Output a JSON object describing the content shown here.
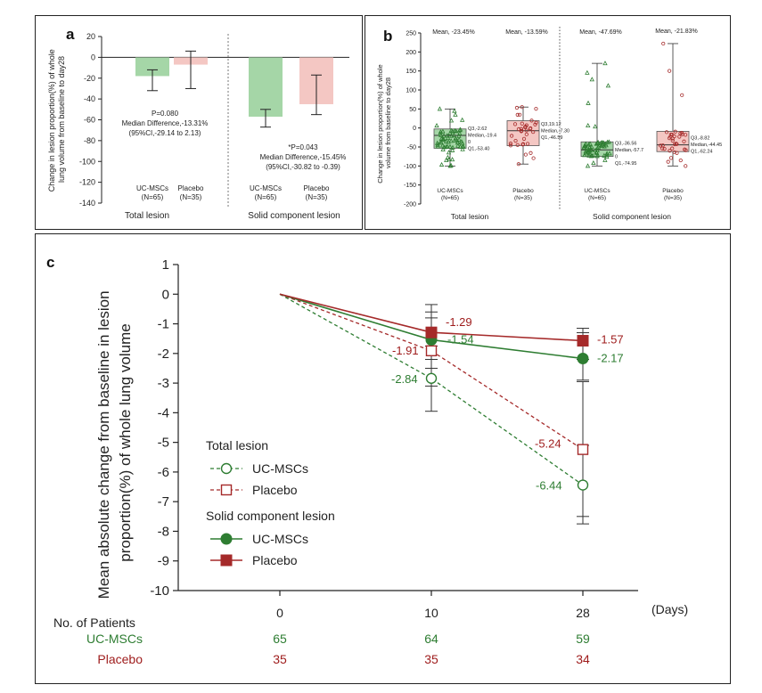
{
  "colors": {
    "green": "#2e7d32",
    "red": "#a52a2a",
    "green_fill": "#a5d6a7",
    "red_fill": "#f4c7c3",
    "text": "#222222",
    "green_text": "#2e7d32",
    "red_text": "#9e1b1b"
  },
  "chart_data": [
    {
      "id": "a",
      "panel_label": "a",
      "type": "bar",
      "ylabel": "Change in lesion proportion(%) of whole lung volume from baseline to day28",
      "ylabel_lines": [
        "Change in lesion proportion(%) of whole",
        "lung volume from baseline to day28"
      ],
      "ylim": [
        -140,
        20
      ],
      "yticks": [
        "20",
        "0",
        "-20",
        "-40",
        "-60",
        "-80",
        "-100",
        "-120",
        "-140"
      ],
      "groups": [
        {
          "label": "Total lesion",
          "bars": [
            {
              "name": "UC-MSCs",
              "n_label": "(N=65)",
              "value": -18,
              "err_low": -32,
              "err_high": -12,
              "color": "green"
            },
            {
              "name": "Placebo",
              "n_label": "(N=35)",
              "value": -7,
              "err_low": -30,
              "err_high": 6,
              "color": "red"
            }
          ],
          "annotation": [
            "P=0.080",
            "Median Difference,-13.31%",
            "(95%CI,-29.14 to 2.13)"
          ]
        },
        {
          "label": "Solid component lesion",
          "bars": [
            {
              "name": "UC-MSCs",
              "n_label": "(N=65)",
              "value": -57,
              "err_low": -67,
              "err_high": -50,
              "color": "green"
            },
            {
              "name": "Placebo",
              "n_label": "(N=35)",
              "value": -45,
              "err_low": -55,
              "err_high": -17,
              "color": "red"
            }
          ],
          "annotation": [
            "*P=0.043",
            "Median Difference,-15.45%",
            "(95%CI,-30.82 to -0.39)"
          ]
        }
      ]
    },
    {
      "id": "b",
      "panel_label": "b",
      "type": "box",
      "ylabel": "Change in lesion proportion(%) of whole volume from baseline to day28",
      "ylabel_lines": [
        "Change in lesion proportion(%) of whole",
        "volume from baseline to day28"
      ],
      "ylim": [
        -200,
        250
      ],
      "yticks": [
        "250",
        "200",
        "150",
        "100",
        "50",
        "0",
        "-50",
        "-100",
        "-150",
        "-200"
      ],
      "groups": [
        {
          "label": "Total lesion",
          "boxes": [
            {
              "name": "UC-MSCs",
              "n_label": "(N=65)",
              "mean_label": "Mean, -23.45%",
              "q1": -53.4,
              "median": -19.4,
              "q3": -2.62,
              "min": -100,
              "max": 50,
              "color": "green",
              "stats": [
                "Q3,-2.62",
                "Median,-19.4",
                "0",
                "Q1,-53.40"
              ]
            },
            {
              "name": "Placebo",
              "n_label": "(N=35)",
              "mean_label": "Mean, -13.59%",
              "q1": -46.59,
              "median": -7.3,
              "q3": 19.12,
              "min": -95,
              "max": 55,
              "color": "red",
              "stats": [
                "Q3,19.12",
                "Median,-7.30",
                "Q1,-46.59"
              ]
            }
          ]
        },
        {
          "label": "Solid component lesion",
          "boxes": [
            {
              "name": "UC-MSCs",
              "n_label": "(N=65)",
              "mean_label": "Mean, -47.69%",
              "q1": -74.95,
              "median": -57.7,
              "q3": -36.56,
              "min": -100,
              "max": 170,
              "color": "green",
              "stats": [
                "Q3,-36.56",
                "Median,-57.7",
                "0",
                "Q1,-74.95"
              ]
            },
            {
              "name": "Placebo",
              "n_label": "(N=35)",
              "mean_label": "Mean, -21.83%",
              "q1": -62.24,
              "median": -44.45,
              "q3": -8.82,
              "min": -100,
              "max": 222,
              "color": "red",
              "stats": [
                "Q3,-8.82",
                "Median,-44.45",
                "Q1,-62.24"
              ]
            }
          ]
        }
      ]
    },
    {
      "id": "c",
      "panel_label": "c",
      "type": "line",
      "ylabel": "Mean absolute change from baseline in lesion proportion(%) of whole lung volume",
      "ylabel_lines": [
        "Mean absolute change from baseline in lesion",
        "proportion(%) of whole lung volume"
      ],
      "xlabel": "(Days)",
      "x": [
        0,
        10,
        28
      ],
      "xtick_labels": [
        "0",
        "10",
        "28"
      ],
      "ylim": [
        -10,
        1
      ],
      "yticks": [
        "1",
        "0",
        "-1",
        "-2",
        "-3",
        "-4",
        "-5",
        "-6",
        "-7",
        "-8",
        "-9",
        "-10"
      ],
      "legend_groups": [
        {
          "title": "Total lesion",
          "entries": [
            {
              "series": "total_msc",
              "label": "UC-MSCs"
            },
            {
              "series": "total_pbo",
              "label": "Placebo"
            }
          ]
        },
        {
          "title": "Solid component lesion",
          "entries": [
            {
              "series": "solid_msc",
              "label": "UC-MSCs"
            },
            {
              "series": "solid_pbo",
              "label": "Placebo"
            }
          ]
        }
      ],
      "series": [
        {
          "id": "total_msc",
          "name": "UC-MSCs",
          "group": "Total lesion",
          "values": [
            0,
            -2.84,
            -6.44
          ],
          "labels": [
            "",
            "-2.84",
            "-6.44"
          ],
          "err_low": [
            null,
            -3.95,
            -7.75
          ],
          "err_high": [
            null,
            -1.75,
            -5.1
          ],
          "color": "green",
          "dashed": true,
          "marker": "circle-open"
        },
        {
          "id": "total_pbo",
          "name": "Placebo",
          "group": "Total lesion",
          "values": [
            0,
            -1.91,
            -5.24
          ],
          "labels": [
            "",
            "-1.91",
            "-5.24"
          ],
          "err_low": [
            null,
            -3.1,
            -7.5
          ],
          "err_high": [
            null,
            -0.8,
            -2.95
          ],
          "color": "red",
          "dashed": true,
          "marker": "square-open"
        },
        {
          "id": "solid_msc",
          "name": "UC-MSCs",
          "group": "Solid component lesion",
          "values": [
            0,
            -1.54,
            -2.17
          ],
          "labels": [
            "",
            "-1.54",
            "-2.17"
          ],
          "err_low": [
            null,
            -2.5,
            -2.9
          ],
          "err_high": [
            null,
            -0.6,
            -1.3
          ],
          "color": "green",
          "dashed": false,
          "marker": "circle-filled"
        },
        {
          "id": "solid_pbo",
          "name": "Placebo",
          "group": "Solid component lesion",
          "values": [
            0,
            -1.29,
            -1.57
          ],
          "labels": [
            "",
            "-1.29",
            "-1.57"
          ],
          "err_low": [
            null,
            -2.2,
            -2.2
          ],
          "err_high": [
            null,
            -0.35,
            -1.15
          ],
          "color": "red",
          "dashed": false,
          "marker": "square-filled"
        }
      ],
      "patients_table": {
        "title": "No. of Patients",
        "rows": [
          {
            "label": "UC-MSCs",
            "values": [
              "65",
              "64",
              "59"
            ],
            "color": "green_text"
          },
          {
            "label": "Placebo",
            "values": [
              "35",
              "35",
              "34"
            ],
            "color": "red_text"
          }
        ]
      }
    }
  ]
}
